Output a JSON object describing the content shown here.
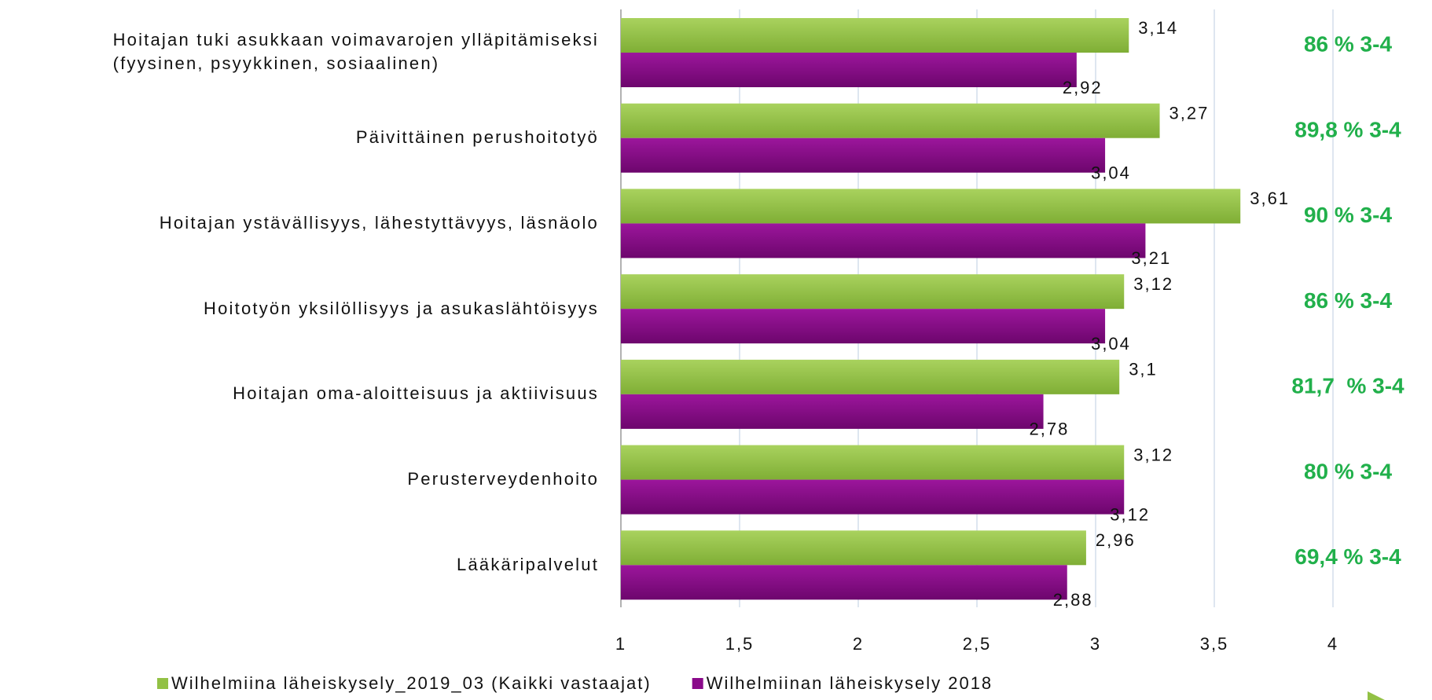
{
  "chart_data": {
    "type": "bar",
    "orientation": "horizontal",
    "categories": [
      "Hoitajan tuki asukkaan voimavarojen ylläpitämiseksi\n(fyysinen, psyykkinen, sosiaalinen)",
      "Päivittäinen perushoitotyö",
      "Hoitajan ystävällisyys, lähestyttävyys, läsnäolo",
      "Hoitotyön yksilöllisyys ja asukaslähtöisyys",
      "Hoitajan oma-aloitteisuus ja aktiivisuus",
      "Perusterveydenhoito",
      "Lääkäripalvelut"
    ],
    "series": [
      {
        "name": "Wilhelmiina läheiskysely_2019_03 (Kaikki vastaajat)",
        "color": "#92c145",
        "values": [
          3.14,
          3.27,
          3.61,
          3.12,
          3.1,
          3.12,
          2.96
        ],
        "value_labels": [
          "3,14",
          "3,27",
          "3,61",
          "3,12",
          "3,1",
          "3,12",
          "2,96"
        ]
      },
      {
        "name": "Wilhelmiinan läheiskysely 2018",
        "color": "#8a0a8a",
        "values": [
          2.92,
          3.04,
          3.21,
          3.04,
          2.78,
          3.12,
          2.88
        ],
        "value_labels": [
          "2,92",
          "3,04",
          "3,21",
          "3,04",
          "2,78",
          "3,12",
          "2,88"
        ]
      }
    ],
    "annotations": [
      "86 % 3-4",
      "89,8 % 3-4",
      "90 % 3-4",
      "86 % 3-4",
      "81,7  % 3-4",
      "80 % 3-4",
      "69,4 % 3-4"
    ],
    "xlim": [
      1,
      4.5
    ],
    "xticks": [
      1,
      {
        "value": 1.5,
        "label": "1,5"
      },
      2,
      {
        "value": 2.5,
        "label": "2,5"
      },
      3,
      {
        "value": 3.5,
        "label": "3,5"
      },
      4
    ],
    "grid": true,
    "legend": "bottom"
  }
}
